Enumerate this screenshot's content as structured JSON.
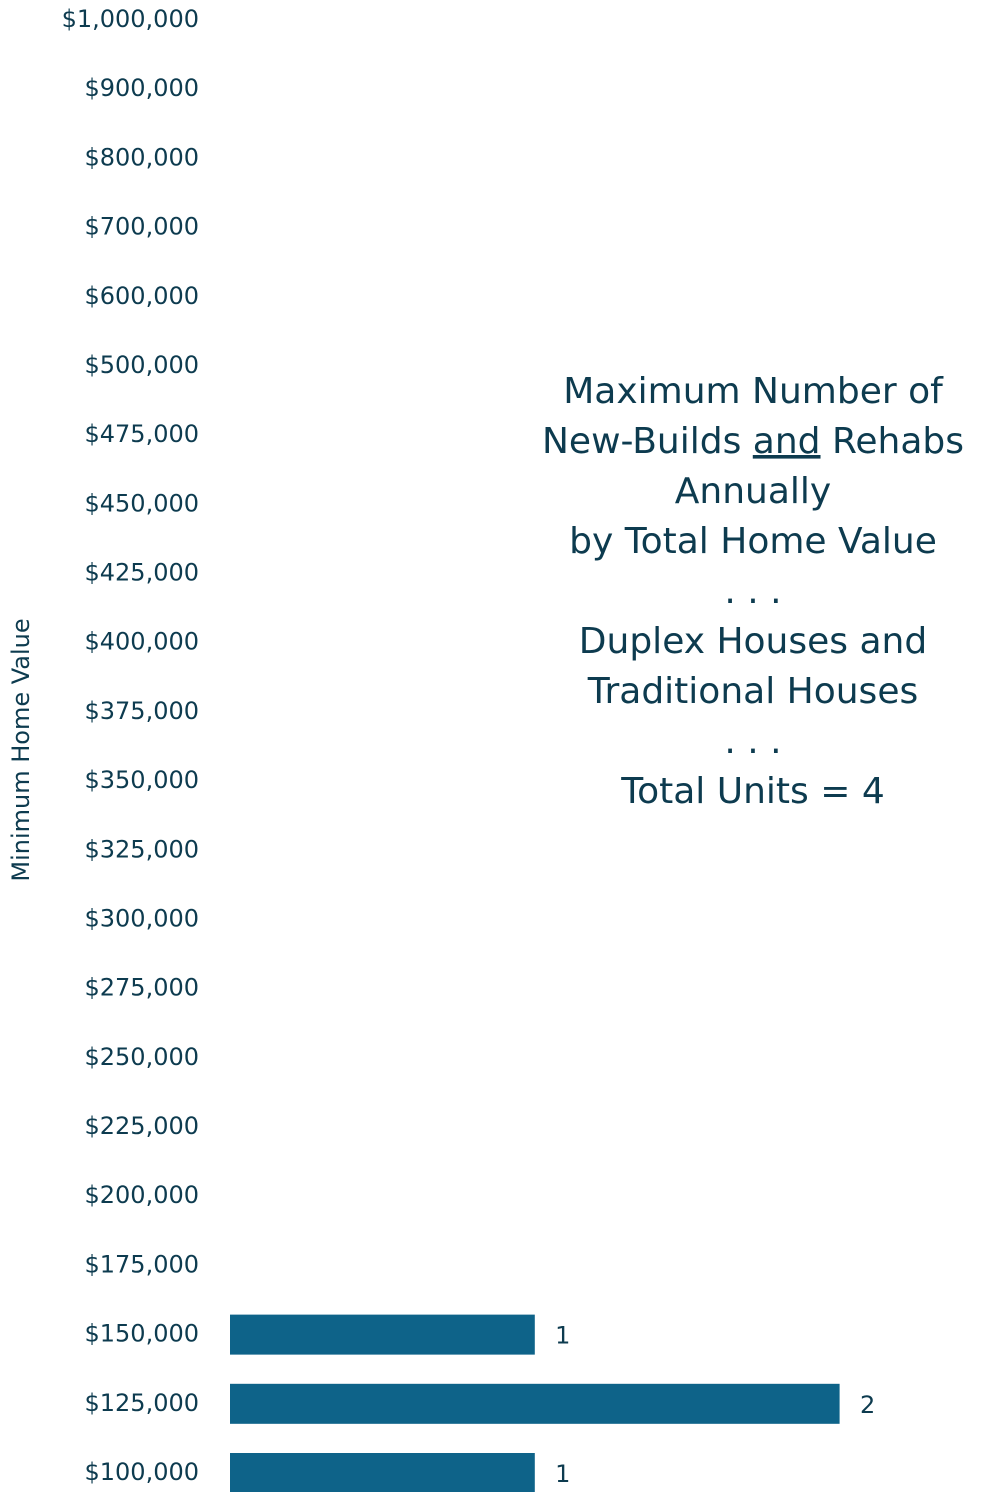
{
  "chart_data": {
    "type": "bar",
    "orientation": "horizontal",
    "title_lines": [
      "Maximum Number of",
      [
        "New-Builds ",
        "and",
        " Rehabs"
      ],
      "Annually",
      "by Total Home Value",
      ". . .",
      "Duplex Houses and",
      "Traditional Houses",
      ". . .",
      "Total Units = 4"
    ],
    "y_label": "Minimum Home Value",
    "categories": [
      "$1,000,000",
      "$900,000",
      "$800,000",
      "$700,000",
      "$600,000",
      "$500,000",
      "$475,000",
      "$450,000",
      "$425,000",
      "$400,000",
      "$375,000",
      "$350,000",
      "$325,000",
      "$300,000",
      "$275,000",
      "$250,000",
      "$225,000",
      "$200,000",
      "$175,000",
      "$150,000",
      "$125,000",
      "$100,000"
    ],
    "values": [
      null,
      null,
      null,
      null,
      null,
      null,
      null,
      null,
      null,
      null,
      null,
      null,
      null,
      null,
      null,
      null,
      null,
      null,
      null,
      1,
      2,
      1
    ],
    "color": "#0e6389",
    "xlim": [
      0,
      2.5
    ]
  }
}
